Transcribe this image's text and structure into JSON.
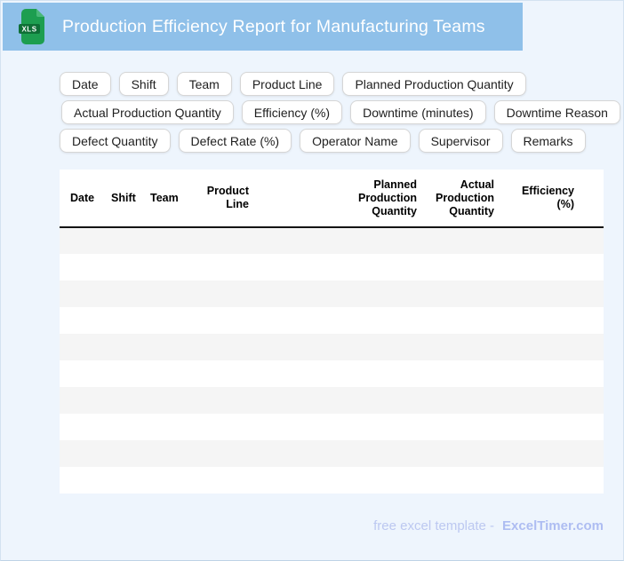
{
  "header": {
    "title": "Production Efficiency Report for Manufacturing Teams",
    "icon_text": "XLS"
  },
  "chips": {
    "rows": [
      [
        "Date",
        "Shift",
        "Team",
        "Product Line",
        "Planned Production Quantity"
      ],
      [
        "Actual Production Quantity",
        "Efficiency (%)",
        "Downtime (minutes)",
        "Downtime Reason"
      ],
      [
        "Defect Quantity",
        "Defect Rate (%)",
        "Operator Name",
        "Supervisor",
        "Remarks"
      ]
    ]
  },
  "table": {
    "columns": [
      "Date",
      "Shift",
      "Team",
      "Product Line",
      "Planned Production Quantity",
      "Actual Production Quantity",
      "Efficiency (%)"
    ],
    "row_count": 10,
    "rows": []
  },
  "footer": {
    "prefix": "free excel template -",
    "brand": "ExcelTimer.com"
  },
  "colors": {
    "header_bar": "#8fc0e9",
    "page_background": "#eef5fd",
    "icon_green": "#1d9e50",
    "icon_band_green": "#0e6f36",
    "row_stripe": "#f5f5f5",
    "footer_text": "#bcc8f1",
    "header_rule": "#141414"
  }
}
